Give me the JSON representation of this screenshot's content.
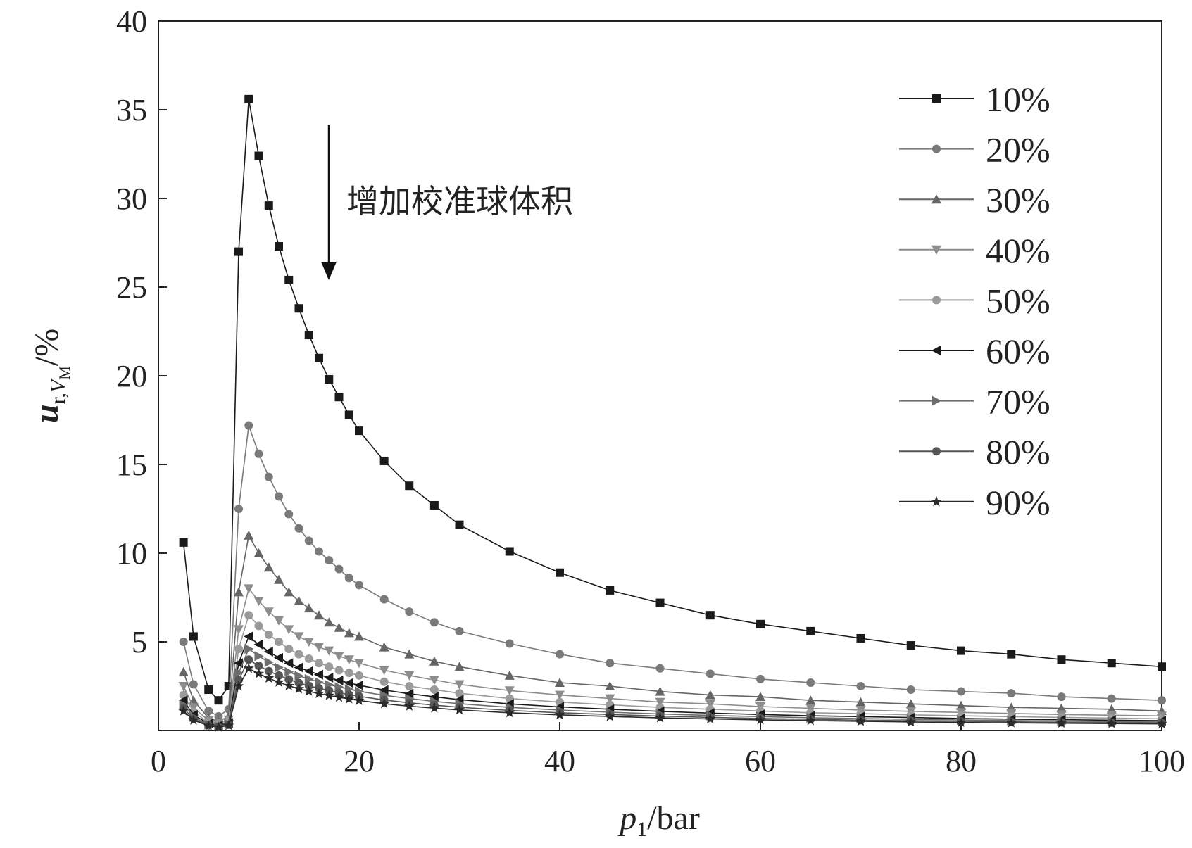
{
  "chart_data": {
    "type": "line",
    "xlabel": {
      "var": "p",
      "sub": "1",
      "unit": "/bar"
    },
    "ylabel": {
      "var": "u",
      "sub": "r,",
      "sub2": "V",
      "sub3": "M",
      "unit": "/%"
    },
    "xlim": [
      0,
      100
    ],
    "ylim": [
      0,
      40
    ],
    "xticks": [
      "0",
      "20",
      "40",
      "60",
      "80",
      "100"
    ],
    "yticks": [
      "5",
      "10",
      "15",
      "20",
      "25",
      "30",
      "35",
      "40"
    ],
    "grid": false,
    "legend_position": "top-right",
    "annotation": {
      "text": "增加校准球体积",
      "arrow": "down"
    },
    "x": [
      2.5,
      3.5,
      5,
      6,
      7,
      8,
      9,
      10,
      11,
      12,
      13,
      14,
      15,
      16,
      17,
      18,
      19,
      20,
      22.5,
      25,
      27.5,
      30,
      35,
      40,
      45,
      50,
      55,
      60,
      65,
      70,
      75,
      80,
      85,
      90,
      95,
      100
    ],
    "series": [
      {
        "name": "10%",
        "color": "#1a1a1a",
        "marker": "square",
        "values": [
          10.6,
          5.3,
          2.3,
          1.7,
          2.5,
          27.0,
          35.6,
          32.4,
          29.6,
          27.3,
          25.4,
          23.8,
          22.3,
          21.0,
          19.8,
          18.8,
          17.8,
          16.9,
          15.2,
          13.8,
          12.7,
          11.6,
          10.1,
          8.9,
          7.9,
          7.2,
          6.5,
          6.0,
          5.6,
          5.2,
          4.8,
          4.5,
          4.3,
          4.0,
          3.8,
          3.6
        ]
      },
      {
        "name": "20%",
        "color": "#7a7a7a",
        "marker": "circle",
        "values": [
          5.0,
          2.6,
          1.1,
          0.8,
          1.2,
          12.5,
          17.2,
          15.6,
          14.3,
          13.2,
          12.2,
          11.4,
          10.7,
          10.1,
          9.6,
          9.1,
          8.6,
          8.2,
          7.4,
          6.7,
          6.1,
          5.6,
          4.9,
          4.3,
          3.8,
          3.5,
          3.2,
          2.9,
          2.7,
          2.5,
          2.3,
          2.2,
          2.1,
          1.9,
          1.8,
          1.7
        ]
      },
      {
        "name": "30%",
        "color": "#656565",
        "marker": "triangle-up",
        "values": [
          3.3,
          1.7,
          0.7,
          0.5,
          0.8,
          7.8,
          11.0,
          10.0,
          9.2,
          8.5,
          7.8,
          7.3,
          6.9,
          6.5,
          6.1,
          5.8,
          5.5,
          5.3,
          4.7,
          4.3,
          3.9,
          3.6,
          3.1,
          2.7,
          2.5,
          2.2,
          2.0,
          1.9,
          1.7,
          1.6,
          1.5,
          1.4,
          1.3,
          1.25,
          1.2,
          1.1
        ]
      },
      {
        "name": "40%",
        "color": "#8c8c8c",
        "marker": "triangle-down",
        "values": [
          2.5,
          1.3,
          0.55,
          0.4,
          0.6,
          5.7,
          8.0,
          7.3,
          6.7,
          6.2,
          5.7,
          5.3,
          5.0,
          4.7,
          4.5,
          4.2,
          4.0,
          3.8,
          3.4,
          3.1,
          2.85,
          2.6,
          2.25,
          2.0,
          1.8,
          1.6,
          1.5,
          1.35,
          1.25,
          1.15,
          1.08,
          1.02,
          0.96,
          0.9,
          0.86,
          0.82
        ]
      },
      {
        "name": "50%",
        "color": "#9a9a9a",
        "marker": "circle",
        "values": [
          2.0,
          1.05,
          0.45,
          0.33,
          0.5,
          4.6,
          6.5,
          5.9,
          5.4,
          5.0,
          4.6,
          4.3,
          4.05,
          3.8,
          3.6,
          3.4,
          3.25,
          3.1,
          2.75,
          2.5,
          2.3,
          2.1,
          1.8,
          1.6,
          1.45,
          1.3,
          1.2,
          1.1,
          1.0,
          0.95,
          0.88,
          0.83,
          0.78,
          0.74,
          0.7,
          0.66
        ]
      },
      {
        "name": "60%",
        "color": "#1a1a1a",
        "marker": "triangle-left",
        "values": [
          1.7,
          0.88,
          0.38,
          0.28,
          0.42,
          3.8,
          5.3,
          4.85,
          4.45,
          4.1,
          3.8,
          3.55,
          3.35,
          3.15,
          2.98,
          2.82,
          2.68,
          2.55,
          2.28,
          2.07,
          1.9,
          1.74,
          1.5,
          1.33,
          1.2,
          1.08,
          0.98,
          0.9,
          0.83,
          0.78,
          0.73,
          0.68,
          0.64,
          0.61,
          0.58,
          0.55
        ]
      },
      {
        "name": "70%",
        "color": "#6e6e6e",
        "marker": "triangle-right",
        "values": [
          1.45,
          0.76,
          0.33,
          0.24,
          0.36,
          3.25,
          4.6,
          4.2,
          3.85,
          3.55,
          3.3,
          3.08,
          2.9,
          2.73,
          2.58,
          2.45,
          2.33,
          2.21,
          1.98,
          1.8,
          1.64,
          1.51,
          1.3,
          1.15,
          1.03,
          0.93,
          0.85,
          0.78,
          0.72,
          0.67,
          0.63,
          0.59,
          0.56,
          0.53,
          0.5,
          0.48
        ]
      },
      {
        "name": "80%",
        "color": "#555555",
        "marker": "circle",
        "values": [
          1.25,
          0.66,
          0.29,
          0.21,
          0.32,
          2.85,
          4.0,
          3.65,
          3.35,
          3.1,
          2.88,
          2.68,
          2.52,
          2.38,
          2.25,
          2.13,
          2.02,
          1.93,
          1.72,
          1.56,
          1.43,
          1.31,
          1.13,
          1.0,
          0.9,
          0.81,
          0.74,
          0.68,
          0.63,
          0.58,
          0.55,
          0.52,
          0.49,
          0.46,
          0.44,
          0.42
        ]
      },
      {
        "name": "90%",
        "color": "#2a2a2a",
        "marker": "star",
        "values": [
          1.1,
          0.58,
          0.26,
          0.19,
          0.28,
          2.5,
          3.5,
          3.2,
          2.95,
          2.72,
          2.52,
          2.35,
          2.21,
          2.08,
          1.97,
          1.87,
          1.78,
          1.69,
          1.51,
          1.37,
          1.26,
          1.16,
          1.0,
          0.88,
          0.79,
          0.71,
          0.65,
          0.6,
          0.56,
          0.52,
          0.48,
          0.45,
          0.43,
          0.41,
          0.39,
          0.37
        ]
      }
    ]
  }
}
